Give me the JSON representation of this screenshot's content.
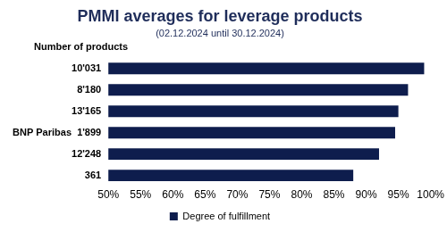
{
  "chart_data": {
    "type": "bar",
    "orientation": "horizontal",
    "title": "PMMI averages for leverage products",
    "subtitle": "(02.12.2024 until 30.12.2024)",
    "ylabel": "Number of products",
    "categories": [
      "10'031",
      "8'180",
      "13'165",
      "BNP Paribas  1'899",
      "12'248",
      "361"
    ],
    "series": [
      {
        "name": "Degree of fulfillment",
        "color": "#0e1d4d",
        "values": [
          99,
          96.5,
          95,
          94.5,
          92,
          88
        ]
      }
    ],
    "xlim": [
      50,
      100
    ],
    "xticks": [
      {
        "value": 50,
        "label": "50%"
      },
      {
        "value": 55,
        "label": "55%"
      },
      {
        "value": 60,
        "label": "60%"
      },
      {
        "value": 65,
        "label": "65%"
      },
      {
        "value": 70,
        "label": "70%"
      },
      {
        "value": 75,
        "label": "75%"
      },
      {
        "value": 80,
        "label": "80%"
      },
      {
        "value": 85,
        "label": "85%"
      },
      {
        "value": 90,
        "label": "90%"
      },
      {
        "value": 95,
        "label": "95%"
      },
      {
        "value": 100,
        "label": "100%"
      }
    ],
    "grid": false,
    "legend": "bottom"
  }
}
